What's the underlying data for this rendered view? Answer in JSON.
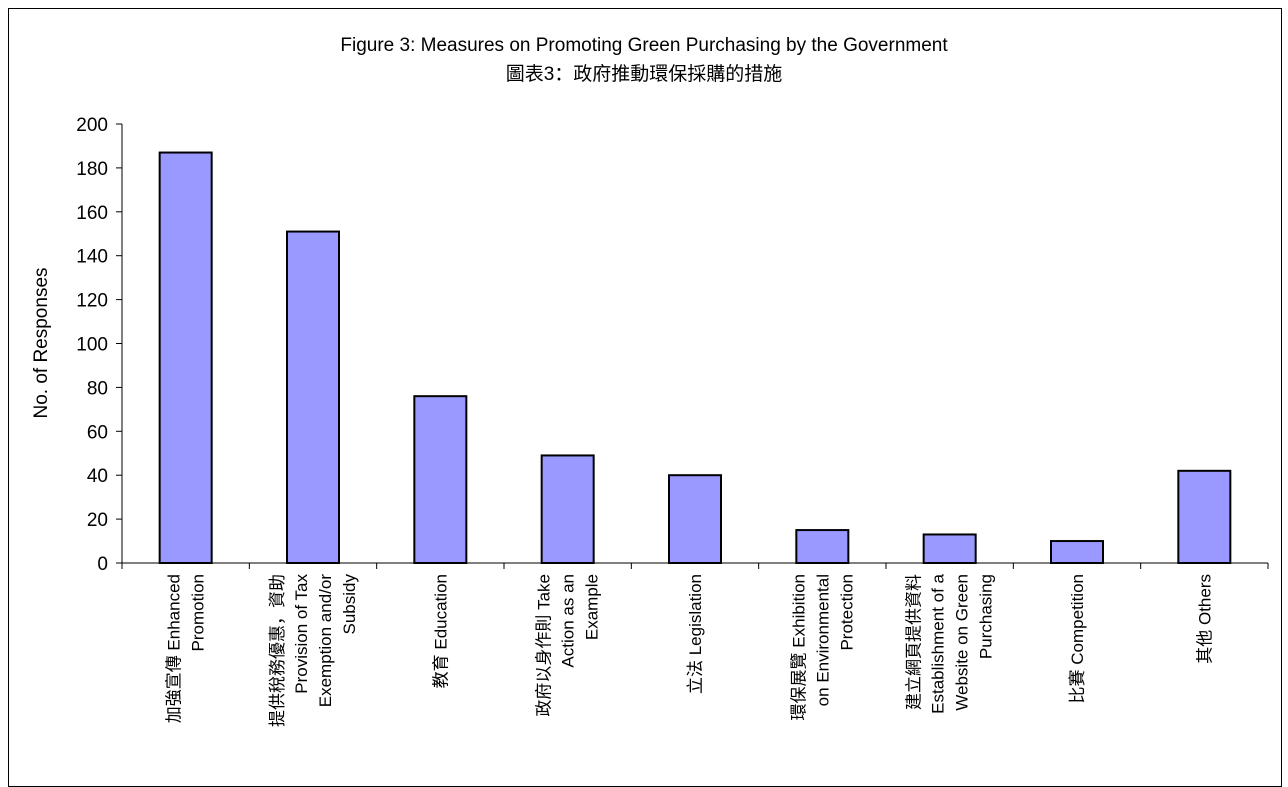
{
  "chart_data": {
    "type": "bar",
    "title": "Figure 3: Measures on Promoting Green Purchasing by the Government",
    "subtitle": "圖表3：政府推動環保採購的措施",
    "ylabel": "No. of Responses",
    "xlabel": "",
    "ylim": [
      0,
      200
    ],
    "yticks": [
      0,
      20,
      40,
      60,
      80,
      100,
      120,
      140,
      160,
      180,
      200
    ],
    "grid": false,
    "bar_color": "#9999ff",
    "bar_stroke": "#000000",
    "categories": [
      [
        "加強宣傳 Enhanced",
        "Promotion"
      ],
      [
        "提供稅務優惠，資助",
        "Provision of Tax",
        "Exemption and/or",
        "Subsidy"
      ],
      [
        "教育 Education"
      ],
      [
        "政府以身作則 Take",
        "Action as an",
        "Example"
      ],
      [
        "立法 Legislation"
      ],
      [
        "環保展覽 Exhibition",
        "on Environmental",
        "Protection"
      ],
      [
        "建立網頁提供資料",
        "Establishment of a",
        "Website on Green",
        "Purchasing"
      ],
      [
        "比賽 Competition"
      ],
      [
        "其他 Others"
      ]
    ],
    "values": [
      187,
      151,
      76,
      49,
      40,
      15,
      13,
      10,
      42
    ]
  }
}
